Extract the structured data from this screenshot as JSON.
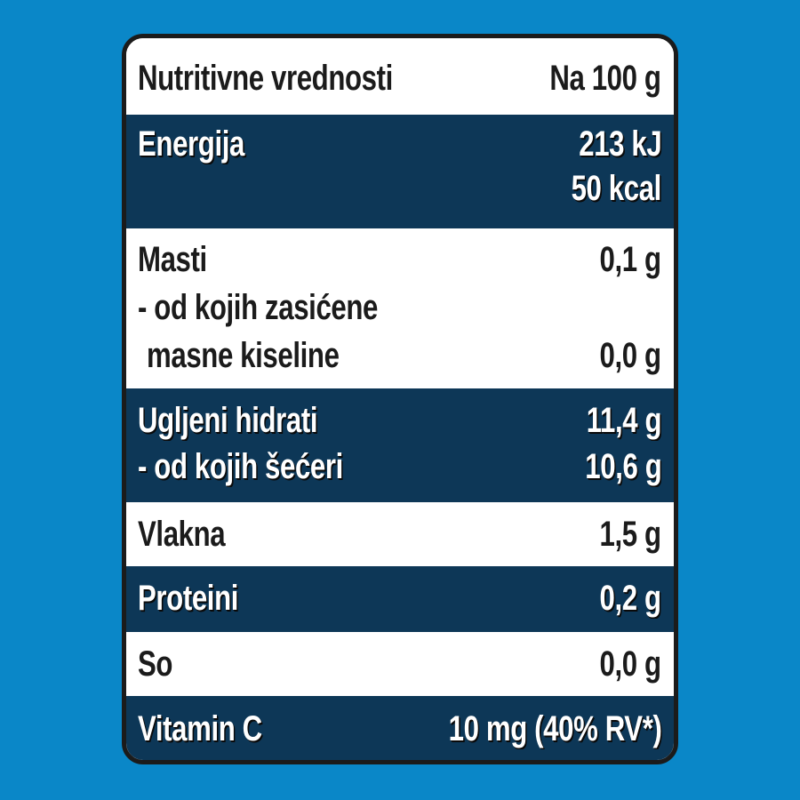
{
  "header": {
    "title": "Nutritivne vrednosti",
    "per": "Na 100 g"
  },
  "energy": {
    "label": "Energija",
    "kj": "213 kJ",
    "kcal": "50 kcal"
  },
  "fat": {
    "label": "Masti",
    "value": "0,1 g",
    "sat_label_1": "- od kojih zasićene",
    "sat_label_2": "masne kiseline",
    "sat_value": "0,0 g"
  },
  "carbs": {
    "label": "Ugljeni hidrati",
    "value": "11,4 g",
    "sugar_label": "- od kojih šećeri",
    "sugar_value": "10,6 g"
  },
  "fiber": {
    "label": "Vlakna",
    "value": "1,5 g"
  },
  "protein": {
    "label": "Proteini",
    "value": "0,2 g"
  },
  "salt": {
    "label": "So",
    "value": "0,0 g"
  },
  "vitamin_c": {
    "label": "Vitamin C",
    "value": "10 mg (40% RV*)"
  },
  "colors": {
    "background": "#0a87c8",
    "dark_row": "#0d3757",
    "light_row": "#ffffff",
    "border": "#1b1b1b"
  }
}
